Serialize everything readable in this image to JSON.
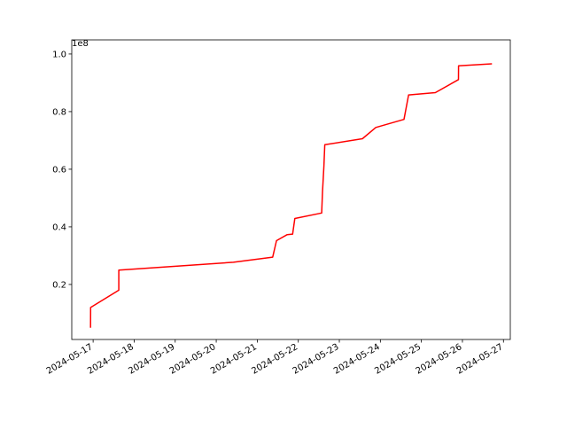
{
  "chart_data": {
    "type": "line",
    "title": "",
    "xlabel": "",
    "ylabel": "",
    "y_offset_text": "1e8",
    "xlim": [
      "2024-05-16T11:30",
      "2024-05-27T04:00"
    ],
    "ylim": [
      0.009,
      1.049
    ],
    "grid": false,
    "x_ticks": [
      "2024-05-17",
      "2024-05-18",
      "2024-05-19",
      "2024-05-20",
      "2024-05-21",
      "2024-05-22",
      "2024-05-23",
      "2024-05-24",
      "2024-05-25",
      "2024-05-26",
      "2024-05-27"
    ],
    "y_ticks": [
      0.2,
      0.4,
      0.6,
      0.8,
      1.0
    ],
    "y_tick_labels": [
      "0.2",
      "0.4",
      "0.6",
      "0.8",
      "1.0"
    ],
    "series": [
      {
        "color": "#ff0000",
        "x": [
          "2024-05-16T22:30",
          "2024-05-16T22:31",
          "2024-05-17T15:00",
          "2024-05-17T15:01",
          "2024-05-20T10:00",
          "2024-05-21T09:00",
          "2024-05-21T11:15",
          "2024-05-21T17:30",
          "2024-05-21T20:40",
          "2024-05-21T22:00",
          "2024-05-22T13:40",
          "2024-05-22T14:10",
          "2024-05-22T15:00",
          "2024-05-22T15:30",
          "2024-05-23T13:30",
          "2024-05-23T21:20",
          "2024-05-24T13:50",
          "2024-05-24T16:30",
          "2024-05-25T08:10",
          "2024-05-25T21:40",
          "2024-05-25T21:45",
          "2024-05-26T17:15"
        ],
        "y": [
          0.05,
          0.12,
          0.18,
          0.25,
          0.277,
          0.295,
          0.352,
          0.373,
          0.375,
          0.429,
          0.448,
          0.52,
          0.61,
          0.685,
          0.706,
          0.745,
          0.773,
          0.858,
          0.866,
          0.911,
          0.959,
          0.966
        ]
      }
    ]
  }
}
